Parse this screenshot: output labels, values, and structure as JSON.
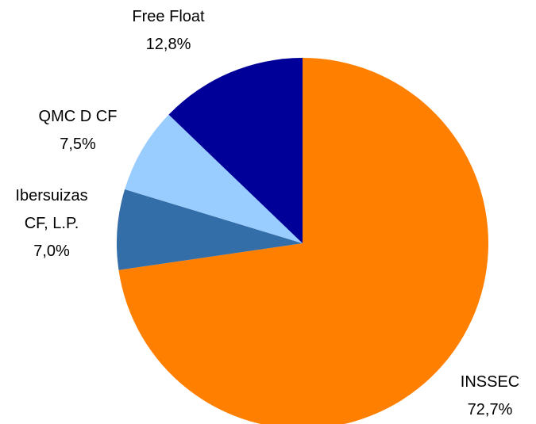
{
  "chart_data": {
    "type": "pie",
    "categories": [
      "INSSEC",
      "Ibersuizas CF, L.P.",
      "QMC D CF",
      "Free Float"
    ],
    "values": [
      72.7,
      7.0,
      7.5,
      12.8
    ],
    "value_labels": [
      "72,7%",
      "7,0%",
      "7,5%",
      "12,8%"
    ],
    "colors": [
      "#ff7f00",
      "#336ea8",
      "#99ccff",
      "#000099"
    ]
  }
}
